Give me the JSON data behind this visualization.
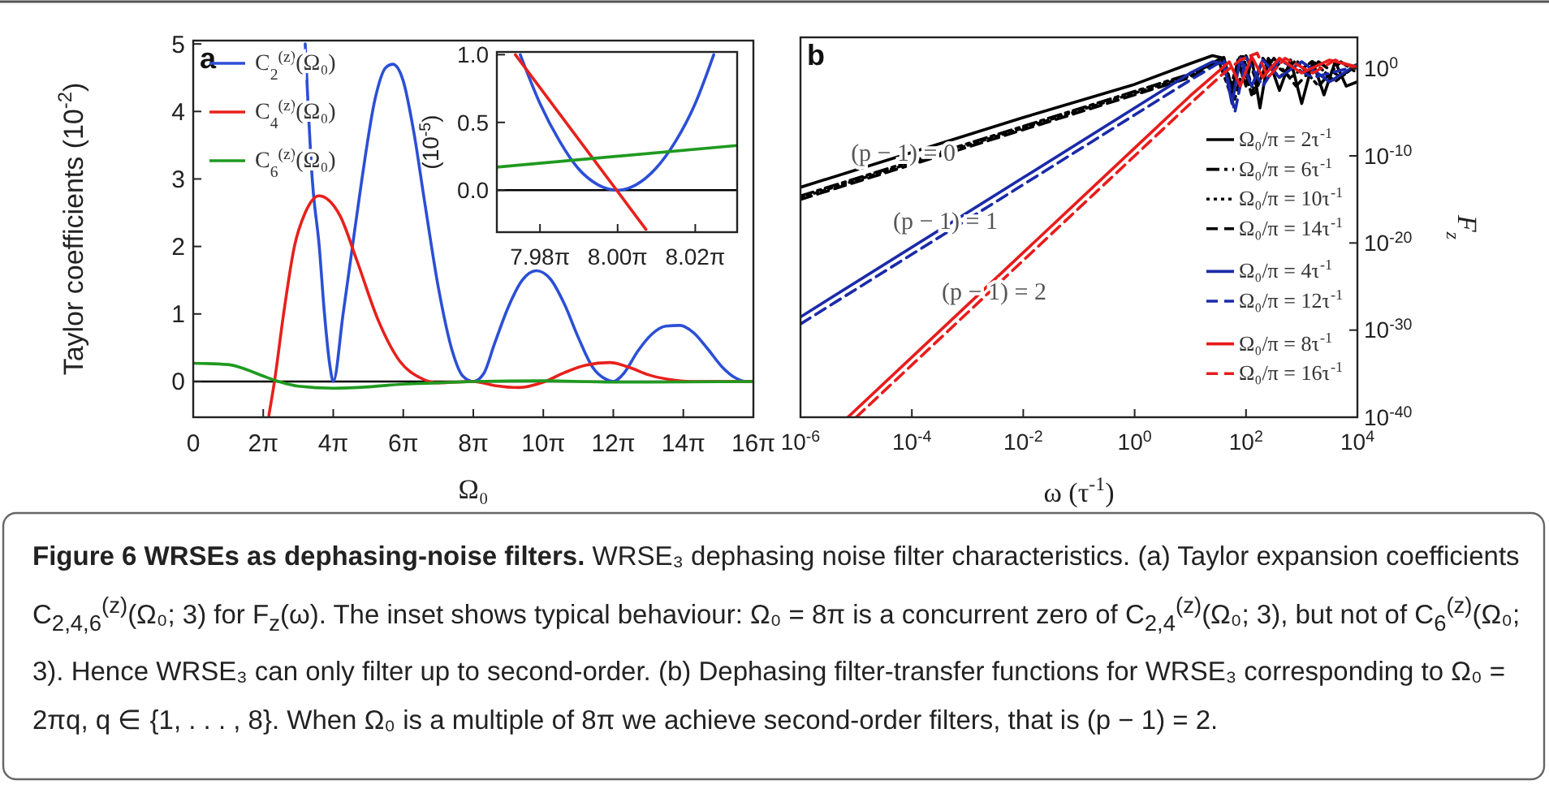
{
  "chart_data": [
    {
      "type": "line",
      "title": "a",
      "xlabel": "Ω₀",
      "ylabel": "Taylor coefficients  (10$^{-2}$)",
      "legend": "top left",
      "grid": false,
      "xlim": [
        0,
        50.27
      ],
      "xticks": [
        0,
        {
          "value": 6.283,
          "label": "2π"
        },
        {
          "value": 12.566,
          "label": "4π"
        },
        {
          "value": 18.85,
          "label": "6π"
        },
        {
          "value": 25.133,
          "label": "8π"
        },
        {
          "value": 31.416,
          "label": "10π"
        },
        {
          "value": 37.699,
          "label": "12π"
        },
        {
          "value": 43.982,
          "label": "14π"
        },
        {
          "value": 50.265,
          "label": "16π"
        }
      ],
      "ylim": [
        -0.53,
        5.05
      ],
      "yticks": [
        0,
        1,
        2,
        3,
        4,
        5
      ],
      "ref_lines": [
        {
          "axis": "y",
          "value": 0,
          "color": "#000000"
        }
      ],
      "series": [
        {
          "name": "C$_{2}$$^{(z)}$(Ω₀)",
          "color": "#2b4fd6",
          "x": [
            10.05,
            10.68,
            11.31,
            11.78,
            12.25,
            12.57,
            13.45,
            14.29,
            15.14,
            16.34,
            17.28,
            17.91,
            18.85,
            19.79,
            20.73,
            21.99,
            23.25,
            24.19,
            25.13,
            26.08,
            27.02,
            28.27,
            29.53,
            30.79,
            32.04,
            33.3,
            34.56,
            35.81,
            37.07,
            37.7,
            38.64,
            39.9,
            41.15,
            42.41,
            43.67,
            44.92,
            46.18,
            47.44,
            48.69,
            49.64,
            50.27
          ],
          "values": [
            5.0,
            3.0,
            2.0,
            1.0,
            0.25,
            0,
            1.0,
            2.0,
            3.0,
            4.2,
            4.65,
            4.7,
            4.45,
            3.7,
            2.7,
            1.4,
            0.45,
            0.08,
            0,
            0.12,
            0.55,
            1.1,
            1.5,
            1.64,
            1.52,
            1.15,
            0.65,
            0.22,
            0.03,
            0,
            0.12,
            0.45,
            0.7,
            0.82,
            0.83,
            0.72,
            0.48,
            0.22,
            0.05,
            0,
            0
          ]
        },
        {
          "name": "C$_{4}$$^{(z)}$(Ω₀)",
          "color": "#e8201b",
          "x": [
            6.79,
            7.29,
            8.11,
            9.08,
            10.05,
            11.28,
            13.19,
            14.67,
            16.62,
            18.54,
            20.42,
            21.99,
            25.13,
            27.02,
            29.22,
            31.42,
            33.3,
            35.19,
            37.38,
            39.27,
            40.84,
            42.73,
            44.61,
            47.12,
            50.27
          ],
          "values": [
            -0.5,
            0,
            1.0,
            2.0,
            2.5,
            2.75,
            2.45,
            1.8,
            0.9,
            0.3,
            0.05,
            -0.02,
            0,
            -0.06,
            -0.09,
            -0.01,
            0.13,
            0.24,
            0.28,
            0.2,
            0.1,
            0.03,
            0,
            0,
            0
          ]
        },
        {
          "name": "C$_{6}$$^{(z)}$(Ω₀)",
          "color": "#1f9a1f",
          "x": [
            0,
            3.14,
            4.71,
            6.28,
            7.85,
            9.42,
            12.57,
            15.71,
            18.85,
            21.99,
            25.13,
            31.42,
            37.7,
            50.27
          ],
          "values": [
            0.27,
            0.25,
            0.18,
            0.08,
            -0.01,
            -0.07,
            -0.1,
            -0.08,
            -0.04,
            -0.02,
            0,
            0.01,
            -0.01,
            0
          ]
        }
      ]
    },
    {
      "type": "line",
      "ylabel": "(10$^{-5}$)",
      "grid": false,
      "xlim": [
        25.035,
        25.23
      ],
      "xticks": [
        {
          "value": 25.07,
          "label": "7.98π"
        },
        {
          "value": 25.133,
          "label": "8.00π"
        },
        {
          "value": 25.196,
          "label": "8.02π"
        }
      ],
      "ylim": [
        -0.31,
        1.02
      ],
      "yticks": [
        {
          "value": 0,
          "label": "0.0"
        },
        0.5,
        {
          "value": 1,
          "label": "1.0"
        }
      ],
      "ref_lines": [
        {
          "axis": "y",
          "value": 0,
          "color": "#000000"
        }
      ],
      "series": [
        {
          "color": "#2b4fd6",
          "x": [
            25.054,
            25.07,
            25.086,
            25.101,
            25.117,
            25.133,
            25.148,
            25.164,
            25.18,
            25.196,
            25.211
          ],
          "values": [
            1.0,
            0.64,
            0.36,
            0.16,
            0.04,
            0,
            0.04,
            0.16,
            0.36,
            0.64,
            1.0
          ]
        },
        {
          "color": "#e8201b",
          "x": [
            25.05,
            25.156
          ],
          "values": [
            1.0,
            -0.29
          ]
        },
        {
          "color": "#1f9a1f",
          "x": [
            25.035,
            25.23
          ],
          "values": [
            0.17,
            0.33
          ]
        }
      ]
    },
    {
      "type": "line",
      "title": "b",
      "xlabel": "ω  (τ$^{-1}$)",
      "ylabel": "F$_{z}$",
      "legend": "right",
      "grid": false,
      "log": "xy",
      "xlim": [
        1e-06,
        10000.0
      ],
      "xticks": [
        {
          "value": 1e-06,
          "label": "10$^{-6}$"
        },
        {
          "value": 0.0001,
          "label": "10$^{-4}$"
        },
        {
          "value": 0.01,
          "label": "10$^{-2}$"
        },
        {
          "value": 1,
          "label": "10$^{0}$"
        },
        {
          "value": 100,
          "label": "10$^{2}$"
        },
        {
          "value": 10000.0,
          "label": "10$^{4}$"
        }
      ],
      "ylim": [
        1e-40,
        4000
      ],
      "yticks": [
        {
          "value": 1,
          "label": "10$^{0}$"
        },
        {
          "value": 1e-10,
          "label": "10$^{-10}$"
        },
        {
          "value": 1e-20,
          "label": "10$^{-20}$"
        },
        {
          "value": 1e-30,
          "label": "10$^{-30}$"
        },
        {
          "value": 1e-40,
          "label": "10$^{-40}$"
        }
      ],
      "annotations": [
        {
          "text": "(p − 1) = 0",
          "x": 7e-05,
          "y": 3e-11
        },
        {
          "text": "(p − 1) = 1",
          "x": 0.0004,
          "y": 4e-19
        },
        {
          "text": "(p − 1) = 2",
          "x": 0.003,
          "y": 3e-27
        },
        "Figure 6  WRSEs as dephasing-noise filters.",
        "WRSE₃ dephasing noise filter characteristics. (a) Taylor expansion coefficients C$_{2,4,6}$$^{(z)}$(Ω₀; 3) for F$_{z}$(ω). The inset shows typical behaviour: Ω₀ = 8π is a concurrent zero of C$_{2,4}$$^{(z)}$(Ω₀; 3), but not of C$_{6}$$^{(z)}$(Ω₀; 3). Hence WRSE₃ can only filter up to second-order. (b) Dephasing filter-transfer functions for WRSE₃ corresponding to Ω₀ = 2πq, q ∈ {1, . . . , 8}. When Ω₀ is a multiple of 8π we achieve second-order filters, that is (p − 1) = 2."
      ],
      "series": [
        {
          "name": "Ω₀/π = 2τ$^{-1}$",
          "color": "#000000",
          "line_style": "solid",
          "x": [
            1e-06,
            0.01,
            1,
            10,
            25,
            40,
            56,
            71,
            100,
            126,
            178,
            251,
            398,
            631,
            1000,
            1585,
            2512,
            3981,
            6310,
            10000.0
          ],
          "values": [
            2.5e-14,
            2.5e-06,
            0.016,
            4,
            32,
            16,
            0.001,
            10,
            0.01,
            20,
            3.2e-05,
            16,
            0.0032,
            10,
            0.0001,
            6.3,
            0.001,
            6.3,
            0.01,
            0.032
          ]
        },
        {
          "name": "Ω₀/π = 6τ$^{-1}$",
          "color": "#000000",
          "line_style": "dashdot",
          "x": [
            1e-06,
            0.01,
            1,
            10,
            32,
            50,
            79,
            126,
            200,
            398,
            794,
            1995,
            5012,
            10000.0
          ],
          "values": [
            2.5e-15,
            2.5e-07,
            0.0025,
            0.25,
            10,
            0.0032,
            40,
            0.001,
            16,
            0.1,
            10,
            0.01,
            6.3,
            0.32
          ]
        },
        {
          "name": "Ω₀/π = 10τ$^{-1}$",
          "color": "#000000",
          "line_style": "dotted",
          "x": [
            1e-06,
            0.01,
            1,
            10,
            35.5,
            56,
            89,
            141,
            251,
            631,
            1585,
            3981,
            10000.0
          ],
          "values": [
            1.6e-15,
            1.6e-07,
            0.0016,
            0.16,
            16,
            0.01,
            25,
            0.001,
            12.6,
            0.1,
            7.9,
            0.032,
            3.2
          ]
        },
        {
          "name": "Ω₀/π = 14τ$^{-1}$",
          "color": "#000000",
          "line_style": "dashed",
          "x": [
            1e-06,
            0.01,
            1,
            10,
            40,
            63,
            100,
            158,
            316,
            794,
            1995,
            5012,
            10000.0
          ],
          "values": [
            1e-15,
            1e-07,
            0.001,
            0.1,
            20,
            0.00032,
            32,
            0.032,
            16,
            0.01,
            6.3,
            0.1,
            4
          ]
        },
        {
          "name": "Ω₀/π = 4τ$^{-1}$",
          "color": "#1a2aa8",
          "line_style": "solid",
          "x": [
            1e-06,
            0.01,
            1,
            10,
            25,
            40,
            56,
            79,
            126,
            200,
            398,
            1000,
            3162,
            10000.0
          ],
          "values": [
            3.2e-29,
            3.2e-13,
            3.2e-05,
            0.32,
            6.3,
            4,
            0.0001,
            16,
            0.01,
            10,
            0.1,
            6.3,
            0.032,
            3.2
          ]
        },
        {
          "name": "Ω₀/π = 12τ$^{-1}$",
          "color": "#1a2aa8",
          "line_style": "dashed",
          "x": [
            1e-06,
            0.01,
            1,
            10,
            40,
            63,
            100,
            200,
            398,
            1585,
            10000.0
          ],
          "values": [
            5e-30,
            5e-14,
            5e-06,
            0.05,
            10,
            1e-05,
            20,
            0.01,
            10,
            0.1,
            2
          ]
        },
        {
          "name": "Ω₀/π = 8τ$^{-1}$",
          "color": "#e81c1c",
          "line_style": "solid",
          "x": [
            7.1e-06,
            0.01,
            1,
            10,
            32,
            50,
            79,
            126,
            200,
            398,
            1000,
            3162,
            10000.0
          ],
          "values": [
            1e-40,
            7.9e-22,
            7.9e-10,
            0.00079,
            0.5,
            6.3,
            0.01,
            25,
            0.1,
            16,
            0.32,
            10,
            1.6
          ]
        },
        {
          "name": "Ω₀/π = 16τ$^{-1}$",
          "color": "#e81c1c",
          "line_style": "dashed",
          "x": [
            1e-05,
            0.01,
            1,
            10,
            40,
            79,
            158,
            251,
            501,
            1585,
            3981,
            10000.0
          ],
          "values": [
            1e-40,
            1e-22,
            1e-10,
            0.0001,
            0.32,
            10,
            63,
            0.1,
            16,
            0.32,
            10,
            1
          ]
        }
      ]
    }
  ]
}
